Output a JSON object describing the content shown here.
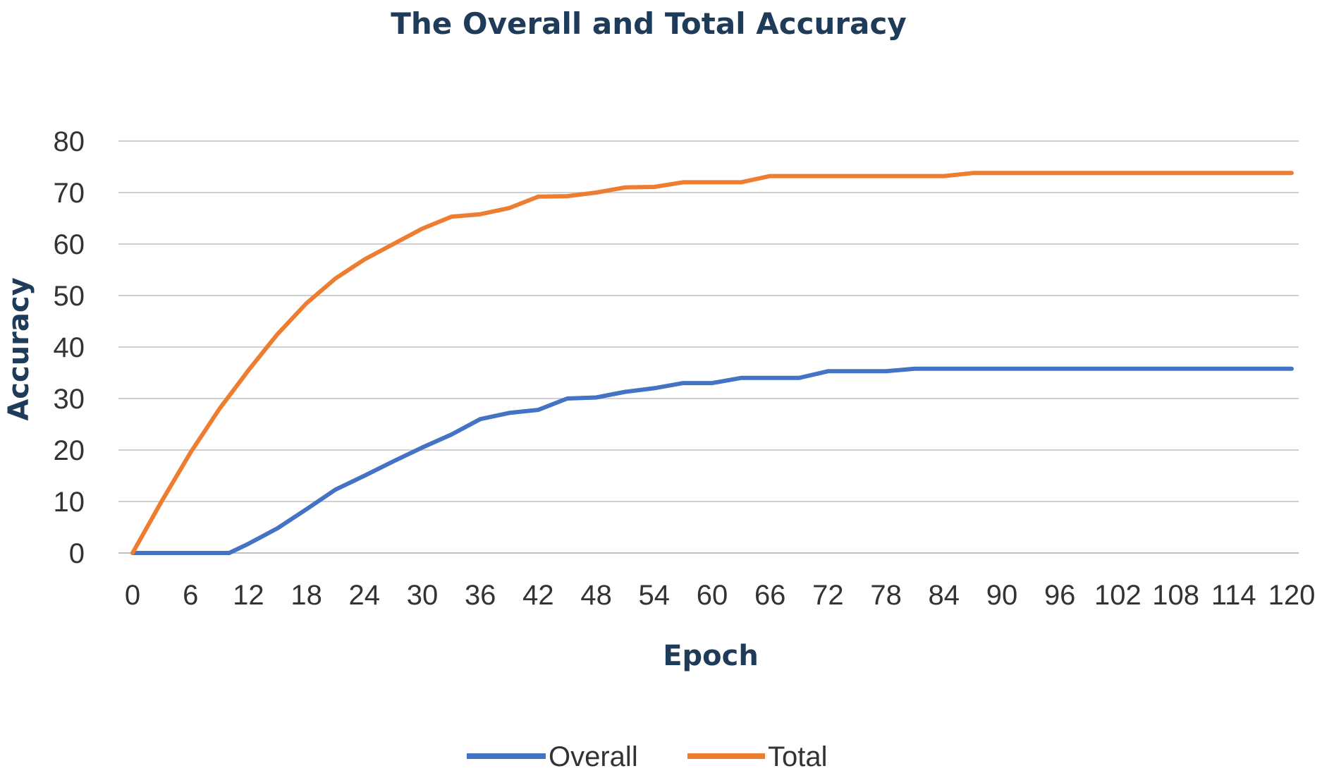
{
  "chart_data": {
    "type": "line",
    "title": "The Overall and Total Accuracy",
    "xlabel": "Epoch",
    "ylabel": "Accuracy",
    "xlim": [
      0,
      120
    ],
    "ylim": [
      0,
      80
    ],
    "x_ticks": [
      "0",
      "6",
      "12",
      "18",
      "24",
      "30",
      "36",
      "42",
      "48",
      "54",
      "60",
      "66",
      "72",
      "78",
      "84",
      "90",
      "96",
      "102",
      "108",
      "114",
      "120"
    ],
    "y_ticks": [
      "0",
      "10",
      "20",
      "30",
      "40",
      "50",
      "60",
      "70",
      "80"
    ],
    "grid": true,
    "legend_position": "bottom",
    "series": [
      {
        "name": "Overall",
        "color": "#4472c4",
        "points": [
          [
            0,
            0
          ],
          [
            3,
            0
          ],
          [
            6,
            0
          ],
          [
            9,
            0
          ],
          [
            10,
            0
          ],
          [
            12,
            1.8
          ],
          [
            15,
            4.8
          ],
          [
            18,
            8.5
          ],
          [
            21,
            12.3
          ],
          [
            24,
            15
          ],
          [
            27,
            17.8
          ],
          [
            30,
            20.5
          ],
          [
            33,
            23
          ],
          [
            36,
            26
          ],
          [
            39,
            27.2
          ],
          [
            42,
            27.8
          ],
          [
            45,
            30
          ],
          [
            48,
            30.2
          ],
          [
            51,
            31.3
          ],
          [
            54,
            32
          ],
          [
            57,
            33
          ],
          [
            60,
            33
          ],
          [
            63,
            34
          ],
          [
            66,
            34
          ],
          [
            69,
            34
          ],
          [
            72,
            35.3
          ],
          [
            75,
            35.3
          ],
          [
            78,
            35.3
          ],
          [
            81,
            35.8
          ],
          [
            84,
            35.8
          ],
          [
            90,
            35.8
          ],
          [
            96,
            35.8
          ],
          [
            102,
            35.8
          ],
          [
            108,
            35.8
          ],
          [
            114,
            35.8
          ],
          [
            120,
            35.8
          ]
        ]
      },
      {
        "name": "Total",
        "color": "#ed7d31",
        "points": [
          [
            0,
            0
          ],
          [
            3,
            10
          ],
          [
            6,
            19.5
          ],
          [
            9,
            28
          ],
          [
            12,
            35.5
          ],
          [
            15,
            42.5
          ],
          [
            18,
            48.5
          ],
          [
            21,
            53.3
          ],
          [
            24,
            57
          ],
          [
            27,
            60
          ],
          [
            30,
            63
          ],
          [
            33,
            65.3
          ],
          [
            36,
            65.8
          ],
          [
            39,
            67
          ],
          [
            42,
            69.2
          ],
          [
            45,
            69.3
          ],
          [
            48,
            70
          ],
          [
            51,
            71
          ],
          [
            54,
            71.1
          ],
          [
            57,
            72
          ],
          [
            60,
            72
          ],
          [
            63,
            72
          ],
          [
            66,
            73.2
          ],
          [
            69,
            73.2
          ],
          [
            72,
            73.2
          ],
          [
            75,
            73.2
          ],
          [
            78,
            73.2
          ],
          [
            81,
            73.2
          ],
          [
            84,
            73.2
          ],
          [
            87,
            73.8
          ],
          [
            90,
            73.8
          ],
          [
            96,
            73.8
          ],
          [
            102,
            73.8
          ],
          [
            108,
            73.8
          ],
          [
            114,
            73.8
          ],
          [
            120,
            73.8
          ]
        ]
      }
    ]
  }
}
